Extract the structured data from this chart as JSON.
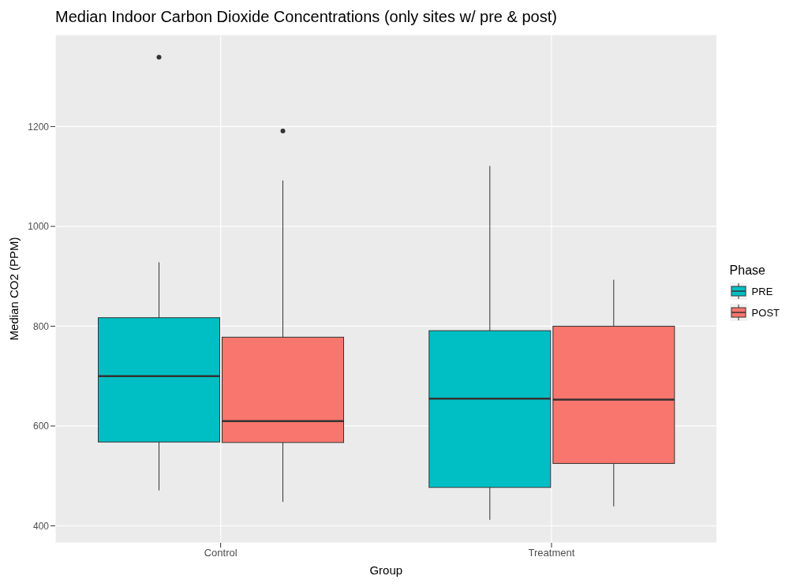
{
  "chart_data": {
    "type": "box",
    "title": "Median Indoor Carbon Dioxide Concentrations (only sites w/ pre & post)",
    "xlabel": "Group",
    "ylabel": "Median CO2 (PPM)",
    "legend_title": "Phase",
    "categories": [
      "Control",
      "Treatment"
    ],
    "series": [
      {
        "name": "PRE",
        "color": "#00bfc4",
        "boxes": [
          {
            "low": 471,
            "q1": 568,
            "median": 700,
            "q3": 817,
            "high": 928,
            "outliers": [
              1339
            ]
          },
          {
            "low": 412,
            "q1": 477,
            "median": 655,
            "q3": 791,
            "high": 1121
          }
        ]
      },
      {
        "name": "POST",
        "color": "#f8766d",
        "boxes": [
          {
            "low": 448,
            "q1": 567,
            "median": 610,
            "q3": 778,
            "high": 1092,
            "outliers": [
              1191
            ]
          },
          {
            "low": 439,
            "q1": 525,
            "median": 653,
            "q3": 800,
            "high": 893
          }
        ]
      }
    ],
    "ylim": [
      366,
      1384
    ],
    "yticks": [
      400,
      600,
      800,
      1000,
      1200
    ],
    "grid": true,
    "legend": "right"
  }
}
